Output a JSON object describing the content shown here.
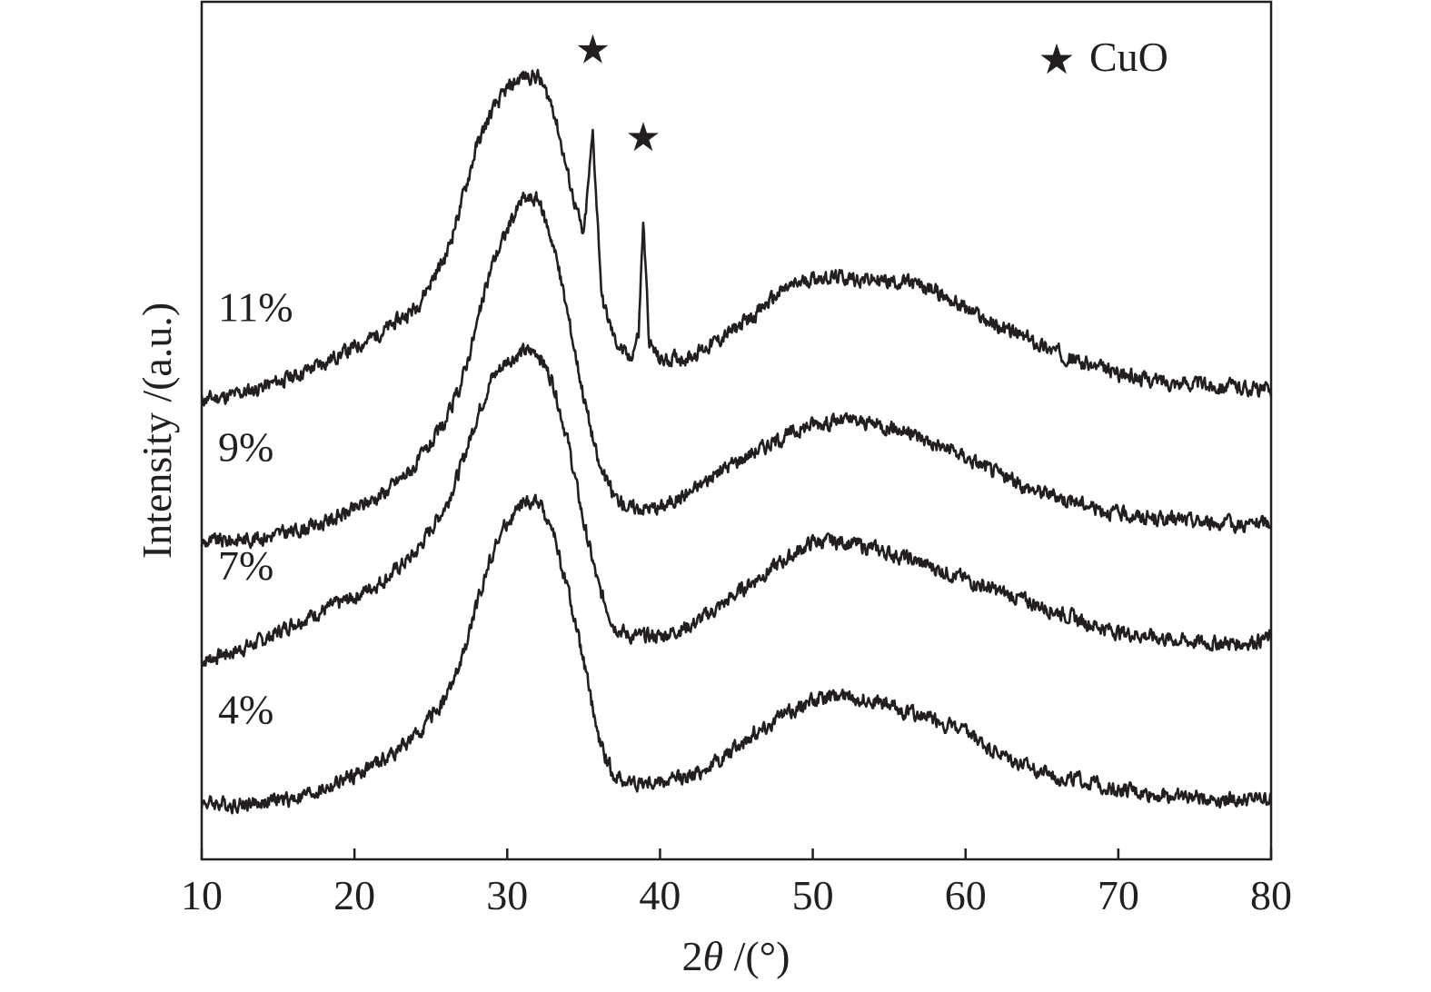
{
  "chart_data": {
    "type": "line",
    "xlabel": "2θ /(°)",
    "xlabel_parts": [
      "2",
      "θ",
      " /(°)"
    ],
    "ylabel": "Intensity /(a.u.)",
    "xlim": [
      10,
      80
    ],
    "xticks": [
      10,
      20,
      30,
      40,
      50,
      60,
      70,
      80
    ],
    "yticks_shown": false,
    "grid": false,
    "legend": {
      "marker": "★",
      "label": "CuO",
      "placement": "top-right"
    },
    "markers": [
      {
        "symbol": "★",
        "x": 35.6,
        "series": "11%"
      },
      {
        "symbol": "★",
        "x": 38.9,
        "series": "11%"
      }
    ],
    "series_order": [
      "4%",
      "7%",
      "9%",
      "11%"
    ],
    "series": [
      {
        "name": "4%",
        "baseline": 0.0,
        "noise": 0.13,
        "seed": 4,
        "points": [
          [
            10,
            0.05
          ],
          [
            12,
            0.03
          ],
          [
            14,
            0.05
          ],
          [
            16,
            0.1
          ],
          [
            18,
            0.2
          ],
          [
            20,
            0.36
          ],
          [
            22,
            0.55
          ],
          [
            24,
            0.8
          ],
          [
            26,
            1.25
          ],
          [
            27,
            1.65
          ],
          [
            28,
            2.3
          ],
          [
            29,
            2.9
          ],
          [
            30,
            3.25
          ],
          [
            31,
            3.45
          ],
          [
            32,
            3.5
          ],
          [
            33,
            3.15
          ],
          [
            34,
            2.45
          ],
          [
            35,
            1.65
          ],
          [
            36,
            0.75
          ],
          [
            37,
            0.35
          ],
          [
            38,
            0.28
          ],
          [
            40,
            0.28
          ],
          [
            42,
            0.35
          ],
          [
            44,
            0.55
          ],
          [
            46,
            0.82
          ],
          [
            48,
            1.05
          ],
          [
            50,
            1.22
          ],
          [
            52,
            1.28
          ],
          [
            54,
            1.22
          ],
          [
            56,
            1.1
          ],
          [
            58,
            1.0
          ],
          [
            60,
            0.85
          ],
          [
            62,
            0.62
          ],
          [
            64,
            0.45
          ],
          [
            66,
            0.35
          ],
          [
            68,
            0.28
          ],
          [
            70,
            0.2
          ],
          [
            72,
            0.15
          ],
          [
            74,
            0.12
          ],
          [
            76,
            0.1
          ],
          [
            78,
            0.08
          ],
          [
            80,
            0.1
          ]
        ]
      },
      {
        "name": "7%",
        "baseline": 1.65,
        "noise": 0.13,
        "seed": 7,
        "points": [
          [
            10,
            0.02
          ],
          [
            12,
            0.12
          ],
          [
            14,
            0.25
          ],
          [
            16,
            0.45
          ],
          [
            18,
            0.6
          ],
          [
            20,
            0.75
          ],
          [
            22,
            0.95
          ],
          [
            24,
            1.25
          ],
          [
            26,
            1.8
          ],
          [
            27,
            2.25
          ],
          [
            28,
            2.8
          ],
          [
            29,
            3.25
          ],
          [
            30,
            3.45
          ],
          [
            31,
            3.55
          ],
          [
            32,
            3.55
          ],
          [
            33,
            3.2
          ],
          [
            34,
            2.5
          ],
          [
            35,
            1.6
          ],
          [
            36,
            0.85
          ],
          [
            37,
            0.42
          ],
          [
            38,
            0.3
          ],
          [
            40,
            0.3
          ],
          [
            42,
            0.42
          ],
          [
            44,
            0.65
          ],
          [
            46,
            0.92
          ],
          [
            48,
            1.15
          ],
          [
            50,
            1.38
          ],
          [
            52,
            1.38
          ],
          [
            54,
            1.3
          ],
          [
            56,
            1.2
          ],
          [
            58,
            1.08
          ],
          [
            60,
            0.95
          ],
          [
            62,
            0.82
          ],
          [
            64,
            0.7
          ],
          [
            66,
            0.58
          ],
          [
            68,
            0.45
          ],
          [
            70,
            0.35
          ],
          [
            72,
            0.3
          ],
          [
            74,
            0.25
          ],
          [
            76,
            0.22
          ],
          [
            78,
            0.22
          ],
          [
            80,
            0.28
          ]
        ]
      },
      {
        "name": "9%",
        "baseline": 3.0,
        "noise": 0.13,
        "seed": 9,
        "points": [
          [
            10,
            0.02
          ],
          [
            12,
            0.05
          ],
          [
            14,
            0.08
          ],
          [
            16,
            0.15
          ],
          [
            18,
            0.25
          ],
          [
            20,
            0.4
          ],
          [
            22,
            0.6
          ],
          [
            24,
            0.9
          ],
          [
            26,
            1.4
          ],
          [
            27,
            1.85
          ],
          [
            28,
            2.5
          ],
          [
            29,
            3.2
          ],
          [
            30,
            3.6
          ],
          [
            31,
            3.95
          ],
          [
            32,
            3.95
          ],
          [
            33,
            3.45
          ],
          [
            34,
            2.6
          ],
          [
            35,
            1.7
          ],
          [
            36,
            0.9
          ],
          [
            37,
            0.55
          ],
          [
            38,
            0.42
          ],
          [
            40,
            0.42
          ],
          [
            42,
            0.6
          ],
          [
            44,
            0.85
          ],
          [
            46,
            1.05
          ],
          [
            48,
            1.22
          ],
          [
            50,
            1.38
          ],
          [
            52,
            1.42
          ],
          [
            54,
            1.38
          ],
          [
            56,
            1.3
          ],
          [
            58,
            1.15
          ],
          [
            60,
            1.0
          ],
          [
            62,
            0.82
          ],
          [
            64,
            0.65
          ],
          [
            66,
            0.55
          ],
          [
            68,
            0.45
          ],
          [
            70,
            0.35
          ],
          [
            72,
            0.3
          ],
          [
            74,
            0.28
          ],
          [
            76,
            0.25
          ],
          [
            78,
            0.22
          ],
          [
            80,
            0.25
          ]
        ]
      },
      {
        "name": "11%",
        "baseline": 4.6,
        "noise": 0.13,
        "seed": 11,
        "points": [
          [
            10,
            0.05
          ],
          [
            12,
            0.1
          ],
          [
            14,
            0.2
          ],
          [
            16,
            0.32
          ],
          [
            18,
            0.48
          ],
          [
            20,
            0.65
          ],
          [
            22,
            0.85
          ],
          [
            24,
            1.1
          ],
          [
            26,
            1.7
          ],
          [
            27,
            2.3
          ],
          [
            28,
            2.95
          ],
          [
            29,
            3.35
          ],
          [
            30,
            3.6
          ],
          [
            31,
            3.75
          ],
          [
            32,
            3.75
          ],
          [
            33,
            3.4
          ],
          [
            34,
            2.6
          ],
          [
            35,
            1.9
          ],
          [
            35.6,
            3.1
          ],
          [
            36.2,
            1.2
          ],
          [
            37,
            0.75
          ],
          [
            38,
            0.5
          ],
          [
            38.6,
            0.8
          ],
          [
            38.9,
            2.1
          ],
          [
            39.3,
            0.7
          ],
          [
            40,
            0.5
          ],
          [
            42,
            0.55
          ],
          [
            44,
            0.75
          ],
          [
            46,
            1.0
          ],
          [
            48,
            1.3
          ],
          [
            50,
            1.45
          ],
          [
            52,
            1.45
          ],
          [
            54,
            1.42
          ],
          [
            56,
            1.4
          ],
          [
            58,
            1.3
          ],
          [
            60,
            1.1
          ],
          [
            62,
            0.9
          ],
          [
            64,
            0.75
          ],
          [
            66,
            0.6
          ],
          [
            68,
            0.45
          ],
          [
            70,
            0.35
          ],
          [
            72,
            0.28
          ],
          [
            74,
            0.25
          ],
          [
            76,
            0.22
          ],
          [
            78,
            0.2
          ],
          [
            80,
            0.15
          ]
        ]
      }
    ]
  }
}
